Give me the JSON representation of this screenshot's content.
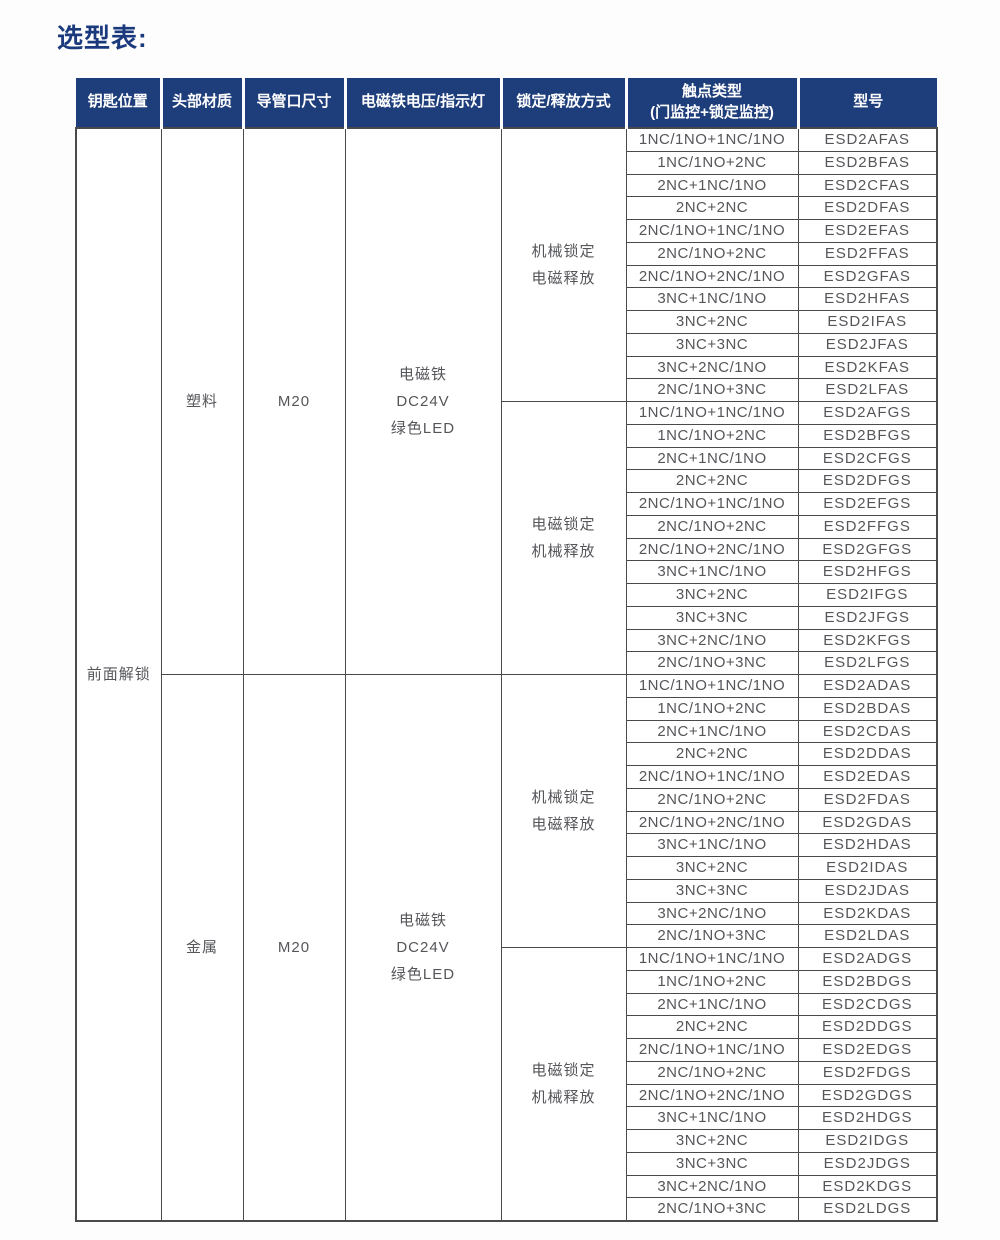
{
  "page": {
    "title": "选型表:"
  },
  "colors": {
    "page_bg": "#fdfdfd",
    "title_color": "#1b3a7e",
    "header_bg": "#1e3d7b",
    "header_text": "#ffffff",
    "border_color": "#4a4a4a",
    "body_text": "#55565a"
  },
  "table": {
    "headers": [
      "钥匙位置",
      "头部材质",
      "导管口尺寸",
      "电磁铁电压/指示灯",
      "锁定/释放方式",
      "触点类型\n(门监控+锁定监控)",
      "型号"
    ],
    "key_position": "前面解锁",
    "material_groups": [
      {
        "material": "塑料",
        "conduit_size": "M20",
        "voltage_indicator": "电磁铁\nDC24V\n绿色LED",
        "lock_groups": [
          {
            "label": "机械锁定\n电磁释放",
            "rows": [
              {
                "contact": "1NC/1NO+1NC/1NO",
                "model": "ESD2AFAS"
              },
              {
                "contact": "1NC/1NO+2NC",
                "model": "ESD2BFAS"
              },
              {
                "contact": "2NC+1NC/1NO",
                "model": "ESD2CFAS"
              },
              {
                "contact": "2NC+2NC",
                "model": "ESD2DFAS"
              },
              {
                "contact": "2NC/1NO+1NC/1NO",
                "model": "ESD2EFAS"
              },
              {
                "contact": "2NC/1NO+2NC",
                "model": "ESD2FFAS"
              },
              {
                "contact": "2NC/1NO+2NC/1NO",
                "model": "ESD2GFAS"
              },
              {
                "contact": "3NC+1NC/1NO",
                "model": "ESD2HFAS"
              },
              {
                "contact": "3NC+2NC",
                "model": "ESD2IFAS"
              },
              {
                "contact": "3NC+3NC",
                "model": "ESD2JFAS"
              },
              {
                "contact": "3NC+2NC/1NO",
                "model": "ESD2KFAS"
              },
              {
                "contact": "2NC/1NO+3NC",
                "model": "ESD2LFAS"
              }
            ]
          },
          {
            "label": "电磁锁定\n机械释放",
            "rows": [
              {
                "contact": "1NC/1NO+1NC/1NO",
                "model": "ESD2AFGS"
              },
              {
                "contact": "1NC/1NO+2NC",
                "model": "ESD2BFGS"
              },
              {
                "contact": "2NC+1NC/1NO",
                "model": "ESD2CFGS"
              },
              {
                "contact": "2NC+2NC",
                "model": "ESD2DFGS"
              },
              {
                "contact": "2NC/1NO+1NC/1NO",
                "model": "ESD2EFGS"
              },
              {
                "contact": "2NC/1NO+2NC",
                "model": "ESD2FFGS"
              },
              {
                "contact": "2NC/1NO+2NC/1NO",
                "model": "ESD2GFGS"
              },
              {
                "contact": "3NC+1NC/1NO",
                "model": "ESD2HFGS"
              },
              {
                "contact": "3NC+2NC",
                "model": "ESD2IFGS"
              },
              {
                "contact": "3NC+3NC",
                "model": "ESD2JFGS"
              },
              {
                "contact": "3NC+2NC/1NO",
                "model": "ESD2KFGS"
              },
              {
                "contact": "2NC/1NO+3NC",
                "model": "ESD2LFGS"
              }
            ]
          }
        ]
      },
      {
        "material": "金属",
        "conduit_size": "M20",
        "voltage_indicator": "电磁铁\nDC24V\n绿色LED",
        "lock_groups": [
          {
            "label": "机械锁定\n电磁释放",
            "rows": [
              {
                "contact": "1NC/1NO+1NC/1NO",
                "model": "ESD2ADAS"
              },
              {
                "contact": "1NC/1NO+2NC",
                "model": "ESD2BDAS"
              },
              {
                "contact": "2NC+1NC/1NO",
                "model": "ESD2CDAS"
              },
              {
                "contact": "2NC+2NC",
                "model": "ESD2DDAS"
              },
              {
                "contact": "2NC/1NO+1NC/1NO",
                "model": "ESD2EDAS"
              },
              {
                "contact": "2NC/1NO+2NC",
                "model": "ESD2FDAS"
              },
              {
                "contact": "2NC/1NO+2NC/1NO",
                "model": "ESD2GDAS"
              },
              {
                "contact": "3NC+1NC/1NO",
                "model": "ESD2HDAS"
              },
              {
                "contact": "3NC+2NC",
                "model": "ESD2IDAS"
              },
              {
                "contact": "3NC+3NC",
                "model": "ESD2JDAS"
              },
              {
                "contact": "3NC+2NC/1NO",
                "model": "ESD2KDAS"
              },
              {
                "contact": "2NC/1NO+3NC",
                "model": "ESD2LDAS"
              }
            ]
          },
          {
            "label": "电磁锁定\n机械释放",
            "rows": [
              {
                "contact": "1NC/1NO+1NC/1NO",
                "model": "ESD2ADGS"
              },
              {
                "contact": "1NC/1NO+2NC",
                "model": "ESD2BDGS"
              },
              {
                "contact": "2NC+1NC/1NO",
                "model": "ESD2CDGS"
              },
              {
                "contact": "2NC+2NC",
                "model": "ESD2DDGS"
              },
              {
                "contact": "2NC/1NO+1NC/1NO",
                "model": "ESD2EDGS"
              },
              {
                "contact": "2NC/1NO+2NC",
                "model": "ESD2FDGS"
              },
              {
                "contact": "2NC/1NO+2NC/1NO",
                "model": "ESD2GDGS"
              },
              {
                "contact": "3NC+1NC/1NO",
                "model": "ESD2HDGS"
              },
              {
                "contact": "3NC+2NC",
                "model": "ESD2IDGS"
              },
              {
                "contact": "3NC+3NC",
                "model": "ESD2JDGS"
              },
              {
                "contact": "3NC+2NC/1NO",
                "model": "ESD2KDGS"
              },
              {
                "contact": "2NC/1NO+3NC",
                "model": "ESD2LDGS"
              }
            ]
          }
        ]
      }
    ]
  }
}
